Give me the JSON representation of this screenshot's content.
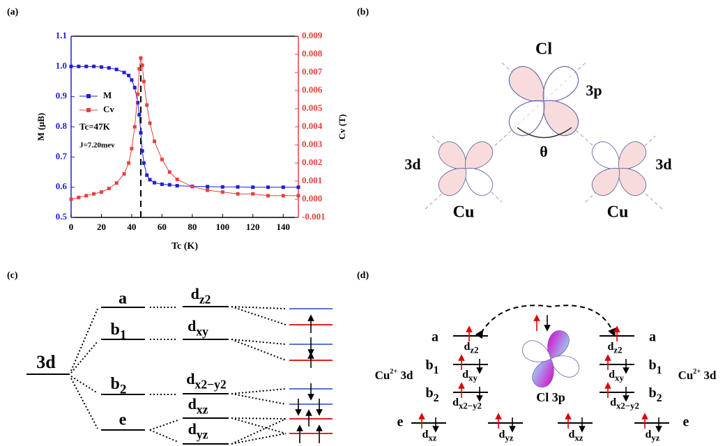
{
  "chart_data": {
    "type": "line",
    "label": "(a)",
    "x_label": "Tc (K)",
    "y_label": "M (μB)",
    "y2_label": "Cv (T)",
    "x": [
      0,
      5,
      10,
      15,
      20,
      25,
      30,
      35,
      38,
      40,
      42,
      44,
      45,
      46,
      47,
      48,
      50,
      52,
      55,
      60,
      65,
      70,
      80,
      90,
      100,
      110,
      120,
      130,
      140,
      150
    ],
    "series": [
      {
        "name": "M",
        "color": "#1f1fd6",
        "values": [
          1.0,
          1.0,
          1.0,
          1.0,
          0.998,
          0.995,
          0.99,
          0.98,
          0.97,
          0.955,
          0.93,
          0.88,
          0.84,
          0.78,
          0.72,
          0.68,
          0.64,
          0.625,
          0.615,
          0.61,
          0.608,
          0.605,
          0.603,
          0.602,
          0.601,
          0.601,
          0.6,
          0.6,
          0.6,
          0.6
        ]
      },
      {
        "name": "Cv",
        "color": "#e84040",
        "axis": "y2",
        "values": [
          0.0,
          0.0001,
          0.0002,
          0.0003,
          0.0004,
          0.0006,
          0.0009,
          0.0014,
          0.002,
          0.0028,
          0.004,
          0.0058,
          0.0072,
          0.0078,
          0.0074,
          0.0065,
          0.0052,
          0.0042,
          0.0032,
          0.0022,
          0.0015,
          0.0011,
          0.0007,
          0.0005,
          0.0004,
          0.0003,
          0.0003,
          0.0002,
          0.0002,
          0.0002
        ]
      }
    ],
    "xlim": [
      0,
      150
    ],
    "xticks": [
      0,
      20,
      40,
      60,
      80,
      100,
      120,
      140
    ],
    "ylim": [
      0.5,
      1.1
    ],
    "yticks": [
      0.5,
      0.6,
      0.7,
      0.8,
      0.9,
      {
        "value": 1,
        "label": "1.0"
      },
      1.1
    ],
    "y2lim": [
      -0.001,
      0.009
    ],
    "y2ticks": [
      -0.001,
      {
        "value": 0,
        "label": "0.000"
      },
      0.001,
      0.002,
      0.003,
      0.004,
      0.005,
      0.006,
      0.007,
      0.008,
      0.009
    ],
    "vline_x": 46,
    "annotations": [
      "Tc=47K",
      "J=7.20mev"
    ],
    "legend": "upper left"
  },
  "panel_b": {
    "label": "(b)",
    "ligand": "Cl",
    "ligand_orbital": "3p",
    "angle": "θ",
    "left_orbital": "3d",
    "right_orbital": "3d",
    "left_ion": "Cu",
    "right_ion": "Cu"
  },
  "panel_c": {
    "label": "(c)",
    "orbital": "3d",
    "levels": [
      "a",
      {
        "main": "b",
        "sub": "1"
      },
      {
        "main": "b",
        "sub": "2"
      },
      "e"
    ],
    "orbitals": [
      {
        "main": "d",
        "sub": "z2"
      },
      {
        "main": "d",
        "sub": "xy"
      },
      {
        "main": "d",
        "sub": "x2−y2"
      },
      {
        "main": "d",
        "sub": "xz"
      },
      {
        "main": "d",
        "sub": "yz"
      }
    ]
  },
  "panel_d": {
    "label": "(d)",
    "ligand": "Cl 3p",
    "left_ion": {
      "main": "Cu",
      "sup": "2+",
      "rest": " 3d"
    },
    "right_ion": {
      "main": "Cu",
      "sup": "2+",
      "rest": " 3d"
    },
    "left_levels": [
      "a",
      {
        "main": "b",
        "sub": "1"
      },
      {
        "main": "b",
        "sub": "2"
      },
      "e"
    ],
    "right_levels": [
      "a",
      {
        "main": "b",
        "sub": "1"
      },
      {
        "main": "b",
        "sub": "2"
      },
      "e"
    ],
    "left_orbitals": [
      {
        "main": "d",
        "sub": "z2"
      },
      {
        "main": "d",
        "sub": "xy"
      },
      {
        "main": "d",
        "sub": "x2−y2"
      },
      {
        "main": "d",
        "sub": "xz"
      },
      {
        "main": "d",
        "sub": "yz"
      }
    ],
    "right_orbitals": [
      {
        "main": "d",
        "sub": "z2"
      },
      {
        "main": "d",
        "sub": "xy"
      },
      {
        "main": "d",
        "sub": "x2−y2"
      },
      {
        "main": "d",
        "sub": "xz"
      },
      {
        "main": "d",
        "sub": "yz"
      }
    ]
  }
}
